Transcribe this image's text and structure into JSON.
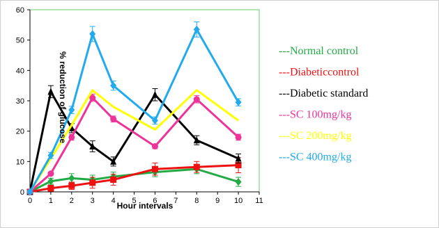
{
  "chart_data": {
    "type": "line",
    "title": "",
    "xlabel": "Hour intervals",
    "ylabel": "% reduction of glucose",
    "xlim": [
      0,
      11
    ],
    "ylim": [
      0,
      60
    ],
    "x_ticks": [
      "0",
      "1",
      "2",
      "3",
      "4",
      "5",
      "6",
      "7",
      "8",
      "9",
      "10",
      "11"
    ],
    "y_ticks": [
      "0",
      "10",
      "20",
      "30",
      "40",
      "50",
      "60"
    ],
    "grid": false,
    "plot_border_color": "#66cc66",
    "legend_position": "right",
    "x": [
      0,
      1,
      2,
      3,
      4,
      6,
      8,
      10
    ],
    "series": [
      {
        "name": "---Normal control",
        "color": "#22aa44",
        "marker": "diamond",
        "values": [
          0,
          3.5,
          4.5,
          4,
          5,
          6.5,
          7.5,
          3.3
        ],
        "error": [
          0.5,
          1,
          1.5,
          1.5,
          1.5,
          1.5,
          1.5,
          1.5
        ]
      },
      {
        "name": "---Diabeticcontrol",
        "color": "#ee1111",
        "marker": "square",
        "values": [
          0,
          1.2,
          2,
          3,
          4,
          7.5,
          8.2,
          8.8
        ],
        "error": [
          0.5,
          1,
          1.2,
          1.8,
          1.8,
          2,
          1.8,
          2.5
        ]
      },
      {
        "name": "---Diabetic standard",
        "color": "#000000",
        "marker": "triangle",
        "values": [
          0,
          33,
          21,
          15,
          10,
          32,
          17,
          11
        ],
        "error": [
          0.5,
          2,
          1.5,
          1.8,
          1.5,
          2,
          1.5,
          1.5
        ]
      },
      {
        "name": "---SC 100mg/kg",
        "color": "#ee3399",
        "marker": "circle",
        "values": [
          0,
          6,
          18,
          31,
          24,
          15,
          30.5,
          18
        ],
        "error": [
          0.5,
          0.5,
          1,
          1.2,
          1,
          0.8,
          1.2,
          1
        ]
      },
      {
        "name": "---SC 200mg/kg",
        "color": "#ffff00",
        "marker": "none",
        "values": [
          0,
          11,
          22,
          33.5,
          28,
          20.5,
          33.5,
          23.5
        ],
        "error": [
          0,
          0,
          0,
          0,
          0,
          0,
          0,
          0
        ]
      },
      {
        "name": "---SC 400mg/kg",
        "color": "#22aaee",
        "marker": "diamond",
        "values": [
          0,
          12,
          27,
          52,
          35,
          23.5,
          53.5,
          29.5
        ],
        "error": [
          0.5,
          1,
          1.2,
          2.5,
          1.5,
          1.2,
          2.5,
          1.2
        ]
      }
    ]
  }
}
